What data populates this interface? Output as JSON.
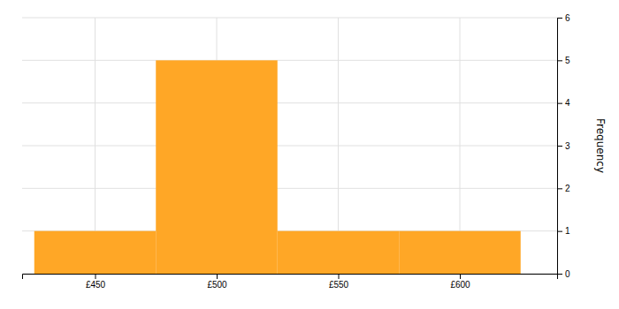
{
  "chart_data": {
    "type": "histogram",
    "bins": [
      425,
      475,
      525,
      575,
      625
    ],
    "values": [
      1,
      5,
      1,
      1
    ],
    "color": "#FFA726",
    "ylabel": "Frequency",
    "xlim": [
      420,
      640
    ],
    "xticks": [
      {
        "value": 450,
        "label": "£450"
      },
      {
        "value": 500,
        "label": "£500"
      },
      {
        "value": 550,
        "label": "£550"
      },
      {
        "value": 600,
        "label": "£600"
      }
    ],
    "ylim": [
      0,
      6
    ],
    "yticks": [
      0,
      1,
      2,
      3,
      4,
      5,
      6
    ],
    "grid": true
  }
}
